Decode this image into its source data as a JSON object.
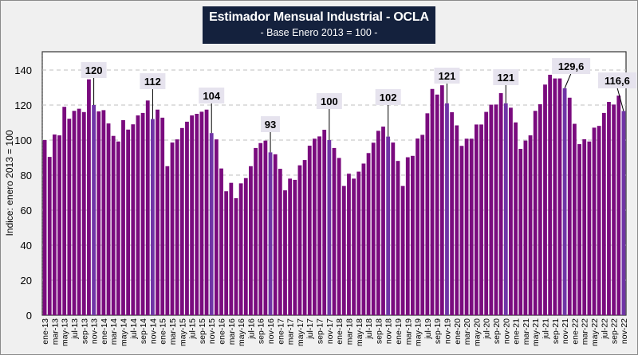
{
  "chart_data": {
    "type": "bar",
    "title": "Estimador Mensual Industrial - OCLA",
    "subtitle": "- Base Enero 2013 = 100 -",
    "ylabel": "Indice: enero 2013 = 100",
    "xlabel": "",
    "ylim": [
      0,
      150
    ],
    "yticks": [
      0,
      20,
      40,
      60,
      80,
      100,
      120,
      140
    ],
    "grid": true,
    "legend": "none",
    "colors": {
      "bar": "#7a0b7e",
      "highlight": "#7034a6",
      "label_bg": "#e6e3ee",
      "title_bg": "#14213d"
    },
    "categories": [
      "ene-13",
      "feb-13",
      "mar-13",
      "abr-13",
      "may-13",
      "jun-13",
      "jul-13",
      "ago-13",
      "sep-13",
      "oct-13",
      "nov-13",
      "dic-13",
      "ene-14",
      "feb-14",
      "mar-14",
      "abr-14",
      "may-14",
      "jun-14",
      "jul-14",
      "ago-14",
      "sep-14",
      "oct-14",
      "nov-14",
      "dic-14",
      "ene-15",
      "feb-15",
      "mar-15",
      "abr-15",
      "may-15",
      "jun-15",
      "jul-15",
      "ago-15",
      "sep-15",
      "oct-15",
      "nov-15",
      "dic-15",
      "ene-16",
      "feb-16",
      "mar-16",
      "abr-16",
      "may-16",
      "jun-16",
      "jul-16",
      "ago-16",
      "sep-16",
      "oct-16",
      "nov-16",
      "dic-16",
      "ene-17",
      "feb-17",
      "mar-17",
      "abr-17",
      "may-17",
      "jun-17",
      "jul-17",
      "ago-17",
      "sep-17",
      "oct-17",
      "nov-17",
      "dic-17",
      "ene-18",
      "feb-18",
      "mar-18",
      "abr-18",
      "may-18",
      "jun-18",
      "jul-18",
      "ago-18",
      "sep-18",
      "oct-18",
      "nov-18",
      "dic-18",
      "ene-19",
      "feb-19",
      "mar-19",
      "abr-19",
      "may-19",
      "jun-19",
      "jul-19",
      "ago-19",
      "sep-19",
      "oct-19",
      "nov-19",
      "dic-19",
      "ene-20",
      "feb-20",
      "mar-20",
      "abr-20",
      "may-20",
      "jun-20",
      "jul-20",
      "ago-20",
      "sep-20",
      "oct-20",
      "nov-20",
      "dic-20",
      "ene-21",
      "feb-21",
      "mar-21",
      "abr-21",
      "may-21",
      "jun-21",
      "jul-21",
      "ago-21",
      "sep-21",
      "oct-21",
      "nov-21",
      "dic-21",
      "ene-22",
      "feb-22",
      "mar-22",
      "abr-22",
      "may-22",
      "jun-22",
      "jul-22",
      "ago-22",
      "sep-22",
      "oct-22",
      "nov-22"
    ],
    "values": [
      100,
      90.4,
      103.2,
      102.7,
      119,
      112.2,
      116.7,
      117.9,
      116,
      134.7,
      120,
      116.4,
      117.1,
      109.5,
      102.4,
      99.2,
      111.4,
      106,
      109,
      114.1,
      115.5,
      122.6,
      112,
      117.4,
      112.8,
      85.1,
      98.6,
      100.4,
      106.9,
      110.5,
      114.1,
      115,
      116.2,
      117.4,
      104,
      100.4,
      83.8,
      70.8,
      75.6,
      66.8,
      75.3,
      78.3,
      85.1,
      95.5,
      98.3,
      99.7,
      93,
      91.9,
      83.6,
      71.3,
      78,
      77.3,
      85.6,
      88.6,
      96.8,
      100.8,
      102.1,
      105.9,
      100,
      95.5,
      89.8,
      73.8,
      80.8,
      78,
      82,
      86.6,
      92.6,
      98.5,
      105.3,
      107.7,
      102,
      98.6,
      88.1,
      73.8,
      90.2,
      91,
      100.9,
      103,
      115.3,
      129.2,
      126,
      131.3,
      121,
      115.9,
      108.4,
      96.7,
      100.8,
      100.8,
      108.9,
      108.9,
      116.1,
      120.2,
      120.3,
      126.8,
      121,
      118.5,
      110.1,
      95,
      99.7,
      102.7,
      116.7,
      120.5,
      131.7,
      137.3,
      135.2,
      135.2,
      129.6,
      124.2,
      109.3,
      97.7,
      100.5,
      99.2,
      107.1,
      108.1,
      115.5,
      121.8,
      120.3,
      125.4,
      116.6
    ],
    "xtick_labels": [
      "ene-13",
      "mar-13",
      "may-13",
      "jul-13",
      "sep-13",
      "nov-13",
      "ene-14",
      "mar-14",
      "may-14",
      "jul-14",
      "sep-14",
      "nov-14",
      "ene-15",
      "mar-15",
      "may-15",
      "jul-15",
      "sep-15",
      "nov-15",
      "ene-16",
      "mar-16",
      "may-16",
      "jul-16",
      "sep-16",
      "nov-16",
      "ene-17",
      "mar-17",
      "may-17",
      "jul-17",
      "sep-17",
      "nov-17",
      "ene-18",
      "mar-18",
      "may-18",
      "jul-18",
      "sep-18",
      "nov-18",
      "ene-19",
      "mar-19",
      "may-19",
      "jul-19",
      "sep-19",
      "nov-19",
      "ene-20",
      "mar-20",
      "may-20",
      "jul-20",
      "sep-20",
      "nov-20",
      "ene-21",
      "mar-21",
      "may-21",
      "jul-21",
      "sep-21",
      "nov-21",
      "ene-22",
      "mar-22",
      "may-22",
      "jul-22",
      "sep-22",
      "nov-22"
    ],
    "annotations": [
      {
        "category": "nov-13",
        "text": "120"
      },
      {
        "category": "nov-14",
        "text": "112"
      },
      {
        "category": "nov-15",
        "text": "104"
      },
      {
        "category": "nov-16",
        "text": "93"
      },
      {
        "category": "nov-17",
        "text": "100"
      },
      {
        "category": "nov-18",
        "text": "102"
      },
      {
        "category": "nov-19",
        "text": "121"
      },
      {
        "category": "nov-20",
        "text": "121"
      },
      {
        "category": "nov-21",
        "text": "129,6"
      },
      {
        "category": "nov-22",
        "text": "116,6"
      }
    ]
  }
}
